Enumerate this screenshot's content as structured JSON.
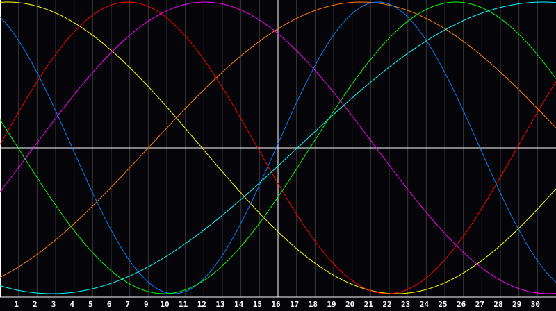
{
  "chart_data": {
    "type": "line",
    "x_tick_labels": [
      "1",
      "2",
      "3",
      "4",
      "5",
      "6",
      "7",
      "9",
      "10",
      "11",
      "12",
      "13",
      "14",
      "15",
      "16",
      "17",
      "18",
      "19",
      "20",
      "21",
      "22",
      "23",
      "24",
      "25",
      "26",
      "27",
      "28",
      "29",
      "30"
    ],
    "highlight_tick": "16",
    "ylim": [
      -1,
      1
    ],
    "grid": true,
    "series": [
      {
        "color": "#ffff00",
        "period_days": 42,
        "peak_slot": 0.4
      },
      {
        "color": "#ff0000",
        "period_days": 28,
        "peak_slot": 6.9
      },
      {
        "color": "#ff00ff",
        "period_days": 37,
        "peak_slot": 11.05
      },
      {
        "color": "#ff8000",
        "period_days": 46,
        "peak_slot": 19.5
      },
      {
        "color": "#0080ff",
        "period_days": 22,
        "peak_slot": 20.4
      },
      {
        "color": "#00ff00",
        "period_days": 31.5,
        "peak_slot": 24.6
      },
      {
        "color": "#00ffff",
        "period_days": 53,
        "peak_slot": 29.3
      }
    ]
  }
}
